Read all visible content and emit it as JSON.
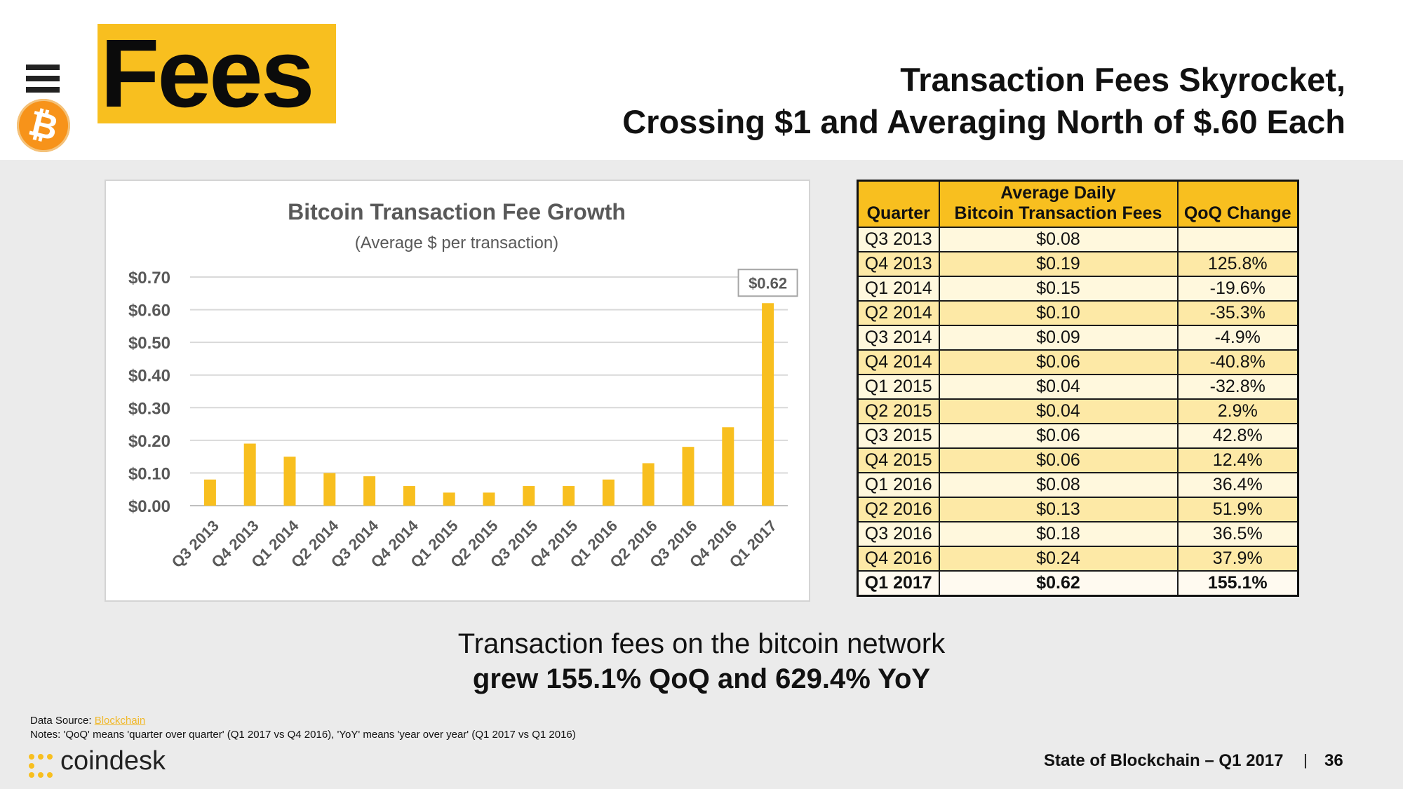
{
  "header": {
    "section_title": "Fees",
    "headline_line1": "Transaction Fees Skyrocket,",
    "headline_line2": "Crossing $1 and Averaging North of $.60 Each"
  },
  "colors": {
    "accent": "#f8bf1f",
    "bar": "#f8bf1f",
    "bitcoin": "#f7931a"
  },
  "icons": {
    "menu": "menu-icon",
    "bitcoin": "bitcoin-icon",
    "logo": "coindesk-logo-icon"
  },
  "chart_data": {
    "type": "bar",
    "title": "Bitcoin Transaction Fee Growth",
    "subtitle": "(Average $ per transaction)",
    "categories": [
      "Q3 2013",
      "Q4 2013",
      "Q1 2014",
      "Q2 2014",
      "Q3 2014",
      "Q4 2014",
      "Q1 2015",
      "Q2 2015",
      "Q3 2015",
      "Q4 2015",
      "Q1 2016",
      "Q2 2016",
      "Q3 2016",
      "Q4 2016",
      "Q1 2017"
    ],
    "values": [
      0.08,
      0.19,
      0.15,
      0.1,
      0.09,
      0.06,
      0.04,
      0.04,
      0.06,
      0.06,
      0.08,
      0.13,
      0.18,
      0.24,
      0.62
    ],
    "y_ticks": [
      "$0.00",
      "$0.10",
      "$0.20",
      "$0.30",
      "$0.40",
      "$0.50",
      "$0.60",
      "$0.70"
    ],
    "ylim": [
      0,
      0.7
    ],
    "grid": true,
    "callout": "$0.62"
  },
  "table": {
    "headers": [
      "Quarter",
      "Average Daily\nBitcoin Transaction Fees",
      "QoQ Change"
    ],
    "rows": [
      [
        "Q3 2013",
        "$0.08",
        ""
      ],
      [
        "Q4 2013",
        "$0.19",
        "125.8%"
      ],
      [
        "Q1 2014",
        "$0.15",
        "-19.6%"
      ],
      [
        "Q2 2014",
        "$0.10",
        "-35.3%"
      ],
      [
        "Q3 2014",
        "$0.09",
        "-4.9%"
      ],
      [
        "Q4 2014",
        "$0.06",
        "-40.8%"
      ],
      [
        "Q1 2015",
        "$0.04",
        "-32.8%"
      ],
      [
        "Q2 2015",
        "$0.04",
        "2.9%"
      ],
      [
        "Q3 2015",
        "$0.06",
        "42.8%"
      ],
      [
        "Q4 2015",
        "$0.06",
        "12.4%"
      ],
      [
        "Q1 2016",
        "$0.08",
        "36.4%"
      ],
      [
        "Q2 2016",
        "$0.13",
        "51.9%"
      ],
      [
        "Q3 2016",
        "$0.18",
        "36.5%"
      ],
      [
        "Q4 2016",
        "$0.24",
        "37.9%"
      ],
      [
        "Q1 2017",
        "$0.62",
        "155.1%"
      ]
    ]
  },
  "summary": {
    "line1": "Transaction fees on the bitcoin network",
    "line2": "grew 155.1% QoQ and 629.4% YoY"
  },
  "footer": {
    "source_label": "Data Source: ",
    "source_link": "Blockchain",
    "notes": "Notes: 'QoQ' means 'quarter over quarter' (Q1 2017 vs Q4 2016), 'YoY' means 'year over year' (Q1 2017 vs Q1 2016)",
    "logo_text": "coindesk",
    "report_title": "State of Blockchain – Q1 2017",
    "separator": "|",
    "page_number": "36"
  }
}
